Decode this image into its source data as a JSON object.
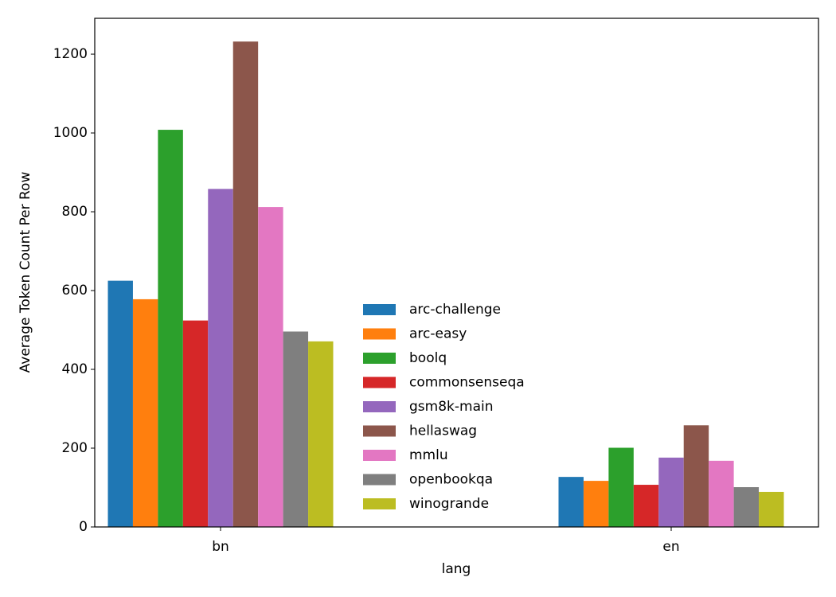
{
  "chart_data": {
    "type": "bar",
    "x_label": "lang",
    "y_label": "Average Token Count Per Row",
    "categories": [
      "bn",
      "en"
    ],
    "series": [
      {
        "name": "arc-challenge",
        "color": "#1f77b4",
        "values": [
          625,
          127
        ]
      },
      {
        "name": "arc-easy",
        "color": "#ff7f0e",
        "values": [
          578,
          117
        ]
      },
      {
        "name": "boolq",
        "color": "#2ca02c",
        "values": [
          1008,
          201
        ]
      },
      {
        "name": "commonsenseqa",
        "color": "#d62728",
        "values": [
          524,
          107
        ]
      },
      {
        "name": "gsm8k-main",
        "color": "#9467bd",
        "values": [
          858,
          176
        ]
      },
      {
        "name": "hellaswag",
        "color": "#8c564b",
        "values": [
          1232,
          258
        ]
      },
      {
        "name": "mmlu",
        "color": "#e377c2",
        "values": [
          812,
          168
        ]
      },
      {
        "name": "openbookqa",
        "color": "#7f7f7f",
        "values": [
          496,
          101
        ]
      },
      {
        "name": "winogrande",
        "color": "#bcbd22",
        "values": [
          471,
          89
        ]
      }
    ],
    "ylim": [
      0,
      1291
    ],
    "yticks": [
      0,
      200,
      400,
      600,
      800,
      1000,
      1200
    ],
    "grid": false,
    "legend": "lower center"
  }
}
